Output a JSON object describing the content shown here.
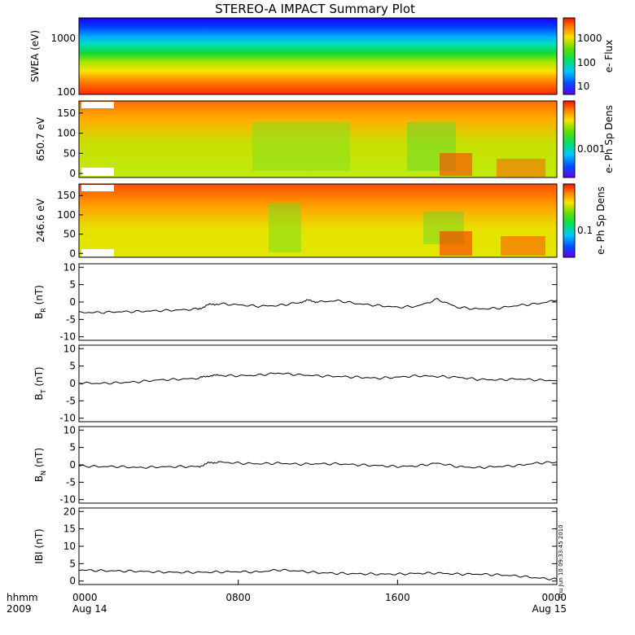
{
  "title": "STEREO-A IMPACT Summary Plot",
  "timestamp": "Thu Jun 10 09:33:45 2010",
  "x_axis": {
    "label_top": "hhmm",
    "label_bottom": "2009",
    "ticks": [
      {
        "label": "0000",
        "sub": "Aug 14",
        "hour": 0
      },
      {
        "label": "0800",
        "sub": "",
        "hour": 8
      },
      {
        "label": "1600",
        "sub": "",
        "hour": 16
      },
      {
        "label": "0000",
        "sub": "Aug 15",
        "hour": 24
      }
    ],
    "range_hours": [
      0,
      24
    ]
  },
  "chart_data": [
    {
      "type": "heatmap",
      "ylabel": "SWEA (eV)",
      "yscale": "log",
      "ylim": [
        95,
        2000
      ],
      "yticks": [
        {
          "label": "1000",
          "value": 1000
        },
        {
          "label": "100",
          "value": 100
        }
      ],
      "colorbar": {
        "label": "e- Flux",
        "scale": "log",
        "range": [
          3,
          6000
        ],
        "ticks": [
          {
            "label": "1000",
            "value": 1000
          },
          {
            "label": "100",
            "value": 100
          },
          {
            "label": "10",
            "value": 10
          }
        ]
      },
      "description_bands": [
        {
          "ev_from": 2000,
          "ev_to": 1300,
          "color": "#1400ff"
        },
        {
          "ev_from": 1300,
          "ev_to": 900,
          "color": "#0090ff"
        },
        {
          "ev_from": 900,
          "ev_to": 600,
          "color": "#00e0c0"
        },
        {
          "ev_from": 600,
          "ev_to": 400,
          "color": "#10d830"
        },
        {
          "ev_from": 400,
          "ev_to": 280,
          "color": "#a8e800"
        },
        {
          "ev_from": 280,
          "ev_to": 200,
          "color": "#ffe000"
        },
        {
          "ev_from": 200,
          "ev_to": 140,
          "color": "#ff8800"
        },
        {
          "ev_from": 140,
          "ev_to": 95,
          "color": "#ff3000"
        }
      ]
    },
    {
      "type": "heatmap",
      "ylabel": "650.7 eV",
      "ylim": [
        -10,
        180
      ],
      "yticks": [
        0,
        50,
        100,
        150
      ],
      "colorbar": {
        "label": "e- Ph Sp Dens",
        "ticks": [
          {
            "label": "0.001",
            "value": 0.001
          }
        ]
      }
    },
    {
      "type": "heatmap",
      "ylabel": "246.6 eV",
      "ylim": [
        -10,
        180
      ],
      "yticks": [
        0,
        50,
        100,
        150
      ],
      "colorbar": {
        "label": "e- Ph Sp Dens",
        "ticks": [
          {
            "label": "0.1",
            "value": 0.1
          }
        ]
      }
    },
    {
      "type": "line",
      "ylabel": "B_R (nT)",
      "ylabel_main": "B",
      "ylabel_sub": "R",
      "ylabel_unit": "(nT)",
      "ylim": [
        -11,
        11
      ],
      "yticks": [
        -10,
        -5,
        0,
        5,
        10
      ],
      "x_hours": [
        0,
        1,
        2,
        3,
        4,
        5,
        6,
        6.5,
        7,
        8,
        9,
        10,
        11,
        11.5,
        12,
        13,
        14,
        15,
        16,
        17,
        18,
        19,
        20,
        21,
        22,
        23,
        24
      ],
      "y": [
        -3.0,
        -3.0,
        -2.8,
        -2.7,
        -2.5,
        -2.3,
        -2.0,
        -0.8,
        -0.5,
        -0.8,
        -1.2,
        -1.0,
        -0.2,
        0.5,
        0.0,
        0.4,
        -0.5,
        -1.0,
        -1.5,
        -1.2,
        0.8,
        -1.5,
        -2.0,
        -1.8,
        -1.0,
        -0.5,
        0.5
      ]
    },
    {
      "type": "line",
      "ylabel": "B_T (nT)",
      "ylabel_main": "B",
      "ylabel_sub": "T",
      "ylabel_unit": "(nT)",
      "ylim": [
        -11,
        11
      ],
      "yticks": [
        -10,
        -5,
        0,
        5,
        10
      ],
      "x_hours": [
        0,
        1,
        2,
        3,
        4,
        5,
        6,
        6.5,
        7,
        8,
        9,
        10,
        11,
        12,
        13,
        14,
        15,
        16,
        17,
        18,
        19,
        20,
        21,
        22,
        23,
        24
      ],
      "y": [
        0.2,
        0.0,
        0.2,
        0.5,
        1.0,
        1.2,
        1.5,
        2.2,
        2.3,
        2.2,
        2.4,
        3.0,
        2.5,
        2.2,
        2.0,
        1.8,
        1.5,
        1.8,
        2.2,
        2.0,
        1.8,
        1.2,
        1.0,
        1.3,
        1.0,
        0.8
      ]
    },
    {
      "type": "line",
      "ylabel": "B_N (nT)",
      "ylabel_main": "B",
      "ylabel_sub": "N",
      "ylabel_unit": "(nT)",
      "ylim": [
        -11,
        11
      ],
      "yticks": [
        -10,
        -5,
        0,
        5,
        10
      ],
      "x_hours": [
        0,
        1,
        2,
        3,
        4,
        5,
        6,
        6.5,
        7,
        8,
        9,
        10,
        11,
        12,
        13,
        14,
        15,
        16,
        17,
        18,
        19,
        20,
        21,
        22,
        23,
        24
      ],
      "y": [
        -0.3,
        -0.5,
        -0.5,
        -0.8,
        -0.6,
        -0.5,
        -0.5,
        0.5,
        0.8,
        0.5,
        0.3,
        0.5,
        0.2,
        0.3,
        0.3,
        0.0,
        -0.2,
        -0.5,
        -0.3,
        0.5,
        -0.5,
        -0.8,
        -0.5,
        -0.2,
        0.5,
        0.8
      ]
    },
    {
      "type": "line",
      "ylabel": "|B| (nT)",
      "ylabel_text": "IBI (nT)",
      "ylim": [
        -1,
        21
      ],
      "yticks": [
        0,
        5,
        10,
        15,
        20
      ],
      "x_hours": [
        0,
        1,
        2,
        3,
        4,
        5,
        6,
        7,
        8,
        9,
        10,
        11,
        12,
        13,
        14,
        15,
        16,
        17,
        18,
        19,
        20,
        21,
        22,
        23,
        24
      ],
      "y": [
        3.2,
        3.0,
        2.9,
        2.8,
        2.6,
        2.5,
        2.5,
        2.6,
        2.7,
        2.6,
        3.2,
        2.9,
        2.4,
        2.2,
        2.1,
        2.0,
        2.0,
        2.2,
        2.3,
        2.0,
        2.0,
        1.8,
        1.5,
        0.9,
        0.5
      ]
    }
  ]
}
